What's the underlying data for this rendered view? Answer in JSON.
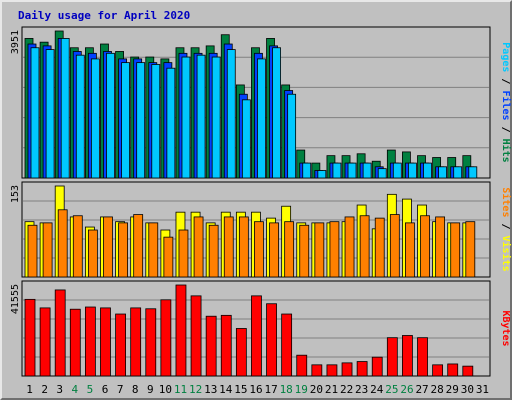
{
  "title": "Daily usage for April 2020",
  "colors": {
    "title": "#0000c0",
    "hits": "#008040",
    "files": "#0040ff",
    "pages": "#00c8ff",
    "visits": "#ffff00",
    "sites": "#ff8000",
    "kbytes": "#ff0000",
    "weekend_label": "#008040",
    "weekday_label": "#000000",
    "panel_bg": "#c0c0c0",
    "grid": "#808080"
  },
  "panels": {
    "hits": {
      "max_label": "3951",
      "legend": [
        {
          "text": "Pages",
          "color": "#00c8ff"
        },
        {
          "text": " / ",
          "color": "#000000"
        },
        {
          "text": "Files",
          "color": "#0040ff"
        },
        {
          "text": " / ",
          "color": "#000000"
        },
        {
          "text": "Hits",
          "color": "#008040"
        }
      ]
    },
    "visits": {
      "max_label": "153",
      "legend": [
        {
          "text": "Sites",
          "color": "#ff8000"
        },
        {
          "text": " / ",
          "color": "#000000"
        },
        {
          "text": "Visits",
          "color": "#ffff00"
        }
      ]
    },
    "kbytes": {
      "max_label": "41555",
      "legend": [
        {
          "text": "KBytes",
          "color": "#ff0000"
        }
      ]
    }
  },
  "chart_data": {
    "type": "bar",
    "title": "Daily usage for April 2020",
    "categories": [
      "1",
      "2",
      "3",
      "4",
      "5",
      "6",
      "7",
      "8",
      "9",
      "10",
      "11",
      "12",
      "13",
      "14",
      "15",
      "16",
      "17",
      "18",
      "19",
      "20",
      "21",
      "22",
      "23",
      "24",
      "25",
      "26",
      "27",
      "28",
      "29",
      "30",
      "31"
    ],
    "weekend_days": [
      "4",
      "5",
      "11",
      "12",
      "18",
      "19",
      "25",
      "26"
    ],
    "grid": true,
    "charts": [
      {
        "name": "hits",
        "ylim": [
          0,
          3951
        ],
        "series": [
          {
            "name": "Hits",
            "values": [
              3751,
              3651,
              3951,
              3501,
              3501,
              3601,
              3401,
              3251,
              3251,
              3201,
              3501,
              3501,
              3551,
              3851,
              2501,
              3501,
              3751,
              2501,
              751,
              401,
              601,
              601,
              651,
              451,
              751,
              701,
              601,
              551,
              551,
              601,
              0
            ]
          },
          {
            "name": "Files",
            "values": [
              3601,
              3551,
              3751,
              3401,
              3351,
              3401,
              3201,
              3201,
              3101,
              3101,
              3351,
              3351,
              3351,
              3601,
              2251,
              3351,
              3551,
              2351,
              401,
              201,
              401,
              401,
              401,
              301,
              401,
              401,
              401,
              301,
              301,
              301,
              0
            ]
          },
          {
            "name": "Pages",
            "values": [
              3501,
              3451,
              3751,
              3301,
              3201,
              3351,
              3101,
              3101,
              3051,
              2951,
              3251,
              3301,
              3251,
              3451,
              2101,
              3201,
              3501,
              2251,
              401,
              201,
              401,
              401,
              401,
              251,
              401,
              401,
              401,
              301,
              301,
              301,
              0
            ]
          }
        ]
      },
      {
        "name": "visits",
        "ylim": [
          0,
          153
        ],
        "series": [
          {
            "name": "Visits",
            "values": [
              93,
              91,
              153,
              101,
              84,
              101,
              93,
              101,
              91,
              79,
              109,
              109,
              91,
              109,
              109,
              109,
              99,
              119,
              91,
              91,
              91,
              93,
              121,
              81,
              139,
              131,
              121,
              93,
              91,
              91,
              0
            ]
          },
          {
            "name": "Sites",
            "values": [
              87,
              91,
              113,
              103,
              79,
              101,
              91,
              105,
              91,
              67,
              79,
              101,
              87,
              101,
              101,
              93,
              91,
              93,
              87,
              91,
              93,
              101,
              103,
              99,
              105,
              91,
              103,
              101,
              91,
              93,
              0
            ]
          }
        ]
      },
      {
        "name": "kbytes",
        "ylim": [
          0,
          41555
        ],
        "series": [
          {
            "name": "KBytes",
            "values": [
              35000,
              31100,
              39300,
              30500,
              31500,
              31100,
              28300,
              31100,
              30700,
              34800,
              41555,
              36600,
              27300,
              27700,
              21700,
              36600,
              33000,
              28300,
              9500,
              5100,
              5100,
              6000,
              6600,
              8600,
              17500,
              18500,
              17500,
              5100,
              5500,
              4500,
              0
            ]
          }
        ]
      }
    ]
  }
}
